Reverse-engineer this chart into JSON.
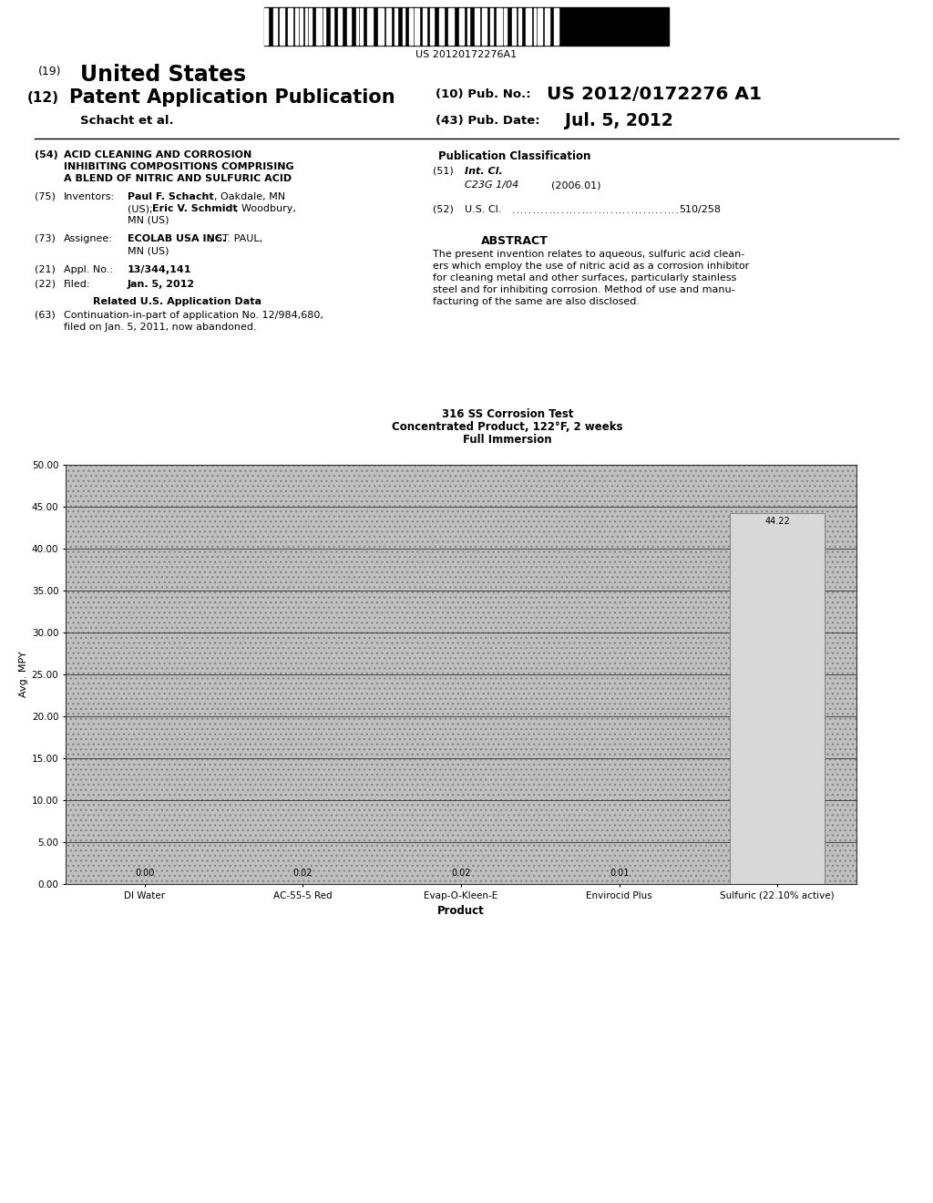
{
  "title_line1": "316 SS Corrosion Test",
  "title_line2": "Concentrated Product, 122°F, 2 weeks",
  "title_line3": "Full Immersion",
  "categories": [
    "DI Water",
    "AC-55-5 Red",
    "Evap-O-Kleen-E",
    "Envirocid Plus",
    "Sulfuric (22.10% active)"
  ],
  "values": [
    0.0,
    0.02,
    0.02,
    0.01,
    44.22
  ],
  "bar_labels": [
    "0.00",
    "0.02",
    "0.02",
    "0.01",
    "44.22"
  ],
  "ylabel": "Avg. MPY",
  "xlabel": "Product",
  "ylim": [
    0,
    50
  ],
  "yticks": [
    0.0,
    5.0,
    10.0,
    15.0,
    20.0,
    25.0,
    30.0,
    35.0,
    40.0,
    45.0,
    50.0
  ],
  "background_color": "#ffffff",
  "patent_number": "US 20120172276A1",
  "pub_number": "US 2012/0172276 A1",
  "pub_date": "Jul. 5, 2012",
  "authors": "Schacht et al.",
  "field54_title_line1": "ACID CLEANING AND CORROSION",
  "field54_title_line2": "INHIBITING COMPOSITIONS COMPRISING",
  "field54_title_line3": "A BLEND OF NITRIC AND SULFURIC ACID",
  "field51_class": "C23G 1/04",
  "field51_year": "(2006.01)",
  "field52_content": "510/258",
  "field21_content": "13/344,141",
  "field22_content": "Jan. 5, 2012",
  "abstract_lines": [
    "The present invention relates to aqueous, sulfuric acid clean-",
    "ers which employ the use of nitric acid as a corrosion inhibitor",
    "for cleaning metal and other surfaces, particularly stainless",
    "steel and for inhibiting corrosion. Method of use and manu-",
    "facturing of the same are also disclosed."
  ]
}
